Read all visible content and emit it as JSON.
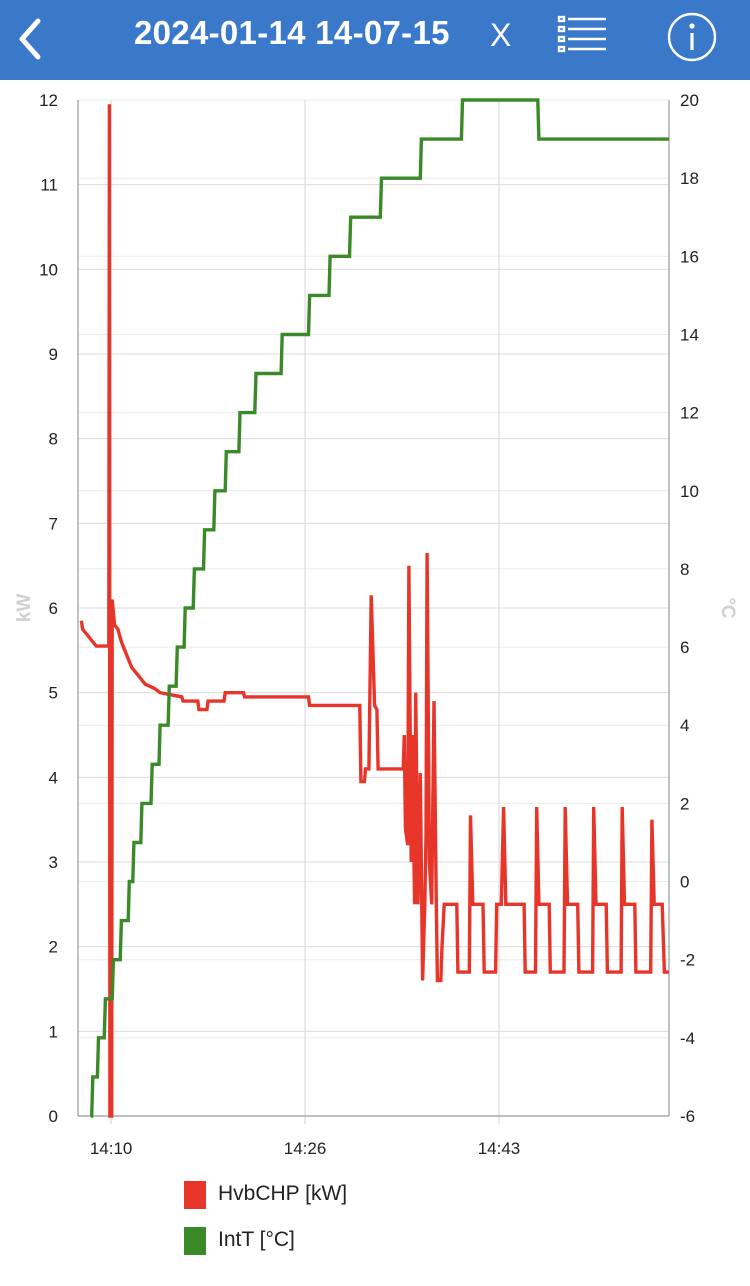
{
  "header": {
    "title": "2024-01-14 14-07-15",
    "close_label": "X",
    "back_icon": "chevron-left-icon",
    "list_icon": "list-icon",
    "info_icon": "info-icon",
    "bar_color": "#3a78c9"
  },
  "chart_data": {
    "type": "line",
    "xlabel": "",
    "ylabel_left": "kW",
    "ylabel_right": "°C",
    "x_ticks": [
      "14:10",
      "14:26",
      "14:43"
    ],
    "x_tick_minutes": [
      0,
      17,
      34
    ],
    "x_range_minutes": [
      -2.9,
      48.9
    ],
    "ylim_left": [
      0,
      12
    ],
    "ylim_right": [
      -6,
      20
    ],
    "yticks_left": [
      0,
      1,
      2,
      3,
      4,
      5,
      6,
      7,
      8,
      9,
      10,
      11,
      12
    ],
    "yticks_right": [
      -6,
      -4,
      -2,
      0,
      2,
      4,
      6,
      8,
      10,
      12,
      14,
      16,
      18,
      20
    ],
    "grid": true,
    "legend_position": "bottom",
    "series": [
      {
        "name": "HvbCHP [kW]",
        "axis": "left",
        "color": "#e8352a",
        "points": [
          [
            -2.6,
            5.85
          ],
          [
            -2.5,
            5.75
          ],
          [
            -2.2,
            5.7
          ],
          [
            -1.9,
            5.65
          ],
          [
            -1.6,
            5.6
          ],
          [
            -1.3,
            5.55
          ],
          [
            -0.2,
            5.55
          ],
          [
            -0.15,
            11.95
          ],
          [
            -0.1,
            0
          ],
          [
            0.05,
            0
          ],
          [
            0.1,
            6.1
          ],
          [
            0.3,
            5.8
          ],
          [
            0.6,
            5.75
          ],
          [
            0.9,
            5.6
          ],
          [
            1.2,
            5.5
          ],
          [
            1.5,
            5.4
          ],
          [
            1.8,
            5.3
          ],
          [
            2.1,
            5.25
          ],
          [
            2.4,
            5.2
          ],
          [
            2.7,
            5.15
          ],
          [
            3.0,
            5.1
          ],
          [
            3.8,
            5.05
          ],
          [
            4.3,
            5.0
          ],
          [
            6.2,
            4.95
          ],
          [
            6.3,
            4.9
          ],
          [
            7.6,
            4.9
          ],
          [
            7.7,
            4.8
          ],
          [
            8.4,
            4.8
          ],
          [
            8.5,
            4.9
          ],
          [
            9.9,
            4.9
          ],
          [
            10.0,
            5.0
          ],
          [
            11.6,
            5.0
          ],
          [
            11.7,
            4.95
          ],
          [
            17.3,
            4.95
          ],
          [
            17.4,
            4.85
          ],
          [
            21.8,
            4.85
          ],
          [
            21.9,
            3.95
          ],
          [
            22.2,
            3.95
          ],
          [
            22.3,
            4.1
          ],
          [
            22.6,
            4.1
          ],
          [
            22.8,
            6.15
          ],
          [
            23.1,
            4.85
          ],
          [
            23.3,
            4.8
          ],
          [
            23.4,
            4.1
          ],
          [
            25.6,
            4.1
          ],
          [
            25.7,
            4.5
          ],
          [
            25.8,
            3.4
          ],
          [
            26.0,
            3.2
          ],
          [
            26.1,
            6.5
          ],
          [
            26.3,
            3.0
          ],
          [
            26.4,
            4.5
          ],
          [
            26.6,
            2.5
          ],
          [
            26.7,
            5.0
          ],
          [
            26.9,
            2.5
          ],
          [
            27.1,
            4.05
          ],
          [
            27.3,
            1.6
          ],
          [
            27.5,
            2.5
          ],
          [
            27.6,
            3.3
          ],
          [
            27.7,
            6.65
          ],
          [
            27.9,
            3.0
          ],
          [
            28.1,
            2.5
          ],
          [
            28.3,
            4.9
          ],
          [
            28.5,
            2.5
          ],
          [
            28.6,
            1.6
          ],
          [
            28.9,
            1.6
          ],
          [
            29.0,
            2.0
          ],
          [
            29.2,
            2.5
          ],
          [
            30.3,
            2.5
          ],
          [
            30.4,
            1.7
          ],
          [
            31.4,
            1.7
          ],
          [
            31.5,
            3.55
          ],
          [
            31.7,
            2.5
          ],
          [
            32.6,
            2.5
          ],
          [
            32.7,
            1.7
          ],
          [
            33.7,
            1.7
          ],
          [
            33.8,
            2.5
          ],
          [
            34.2,
            2.5
          ],
          [
            34.4,
            3.65
          ],
          [
            34.6,
            2.5
          ],
          [
            36.2,
            2.5
          ],
          [
            36.3,
            1.7
          ],
          [
            37.2,
            1.7
          ],
          [
            37.3,
            3.65
          ],
          [
            37.5,
            2.5
          ],
          [
            38.4,
            2.5
          ],
          [
            38.5,
            1.7
          ],
          [
            39.7,
            1.7
          ],
          [
            39.8,
            3.65
          ],
          [
            40.0,
            2.5
          ],
          [
            40.9,
            2.5
          ],
          [
            41.0,
            1.7
          ],
          [
            42.2,
            1.7
          ],
          [
            42.3,
            3.65
          ],
          [
            42.5,
            2.5
          ],
          [
            43.4,
            2.5
          ],
          [
            43.5,
            1.7
          ],
          [
            44.7,
            1.7
          ],
          [
            44.8,
            3.65
          ],
          [
            45.0,
            2.5
          ],
          [
            45.9,
            2.5
          ],
          [
            46.0,
            1.7
          ],
          [
            47.3,
            1.7
          ],
          [
            47.4,
            3.5
          ],
          [
            47.6,
            2.5
          ],
          [
            48.3,
            2.5
          ],
          [
            48.5,
            1.7
          ],
          [
            48.9,
            1.7
          ]
        ]
      },
      {
        "name": "IntT [°C]",
        "axis": "right",
        "color": "#3a8a2a",
        "points": [
          [
            -1.8,
            -6
          ],
          [
            -1.7,
            -6
          ],
          [
            -1.6,
            -5
          ],
          [
            -1.2,
            -5
          ],
          [
            -1.1,
            -4
          ],
          [
            -0.6,
            -4
          ],
          [
            -0.5,
            -3
          ],
          [
            0.1,
            -3
          ],
          [
            0.2,
            -2
          ],
          [
            0.8,
            -2
          ],
          [
            0.9,
            -1
          ],
          [
            1.5,
            -1
          ],
          [
            1.6,
            0
          ],
          [
            1.9,
            0
          ],
          [
            2.0,
            1
          ],
          [
            2.6,
            1
          ],
          [
            2.7,
            2
          ],
          [
            3.5,
            2
          ],
          [
            3.6,
            3
          ],
          [
            4.2,
            3
          ],
          [
            4.3,
            4
          ],
          [
            5.0,
            4
          ],
          [
            5.1,
            5
          ],
          [
            5.7,
            5
          ],
          [
            5.8,
            6
          ],
          [
            6.4,
            6
          ],
          [
            6.5,
            7
          ],
          [
            7.2,
            7
          ],
          [
            7.3,
            8
          ],
          [
            8.1,
            8
          ],
          [
            8.2,
            9
          ],
          [
            9.0,
            9
          ],
          [
            9.1,
            10
          ],
          [
            10.0,
            10
          ],
          [
            10.1,
            11
          ],
          [
            11.2,
            11
          ],
          [
            11.3,
            12
          ],
          [
            12.6,
            12
          ],
          [
            12.7,
            13
          ],
          [
            14.9,
            13
          ],
          [
            15.0,
            14
          ],
          [
            17.3,
            14
          ],
          [
            17.4,
            15
          ],
          [
            19.1,
            15
          ],
          [
            19.2,
            16
          ],
          [
            20.9,
            16
          ],
          [
            21.0,
            17
          ],
          [
            23.6,
            17
          ],
          [
            23.7,
            18
          ],
          [
            27.1,
            18
          ],
          [
            27.2,
            19
          ],
          [
            30.7,
            19
          ],
          [
            30.8,
            20
          ],
          [
            37.4,
            20
          ],
          [
            37.5,
            19
          ],
          [
            48.9,
            19
          ]
        ]
      }
    ]
  }
}
